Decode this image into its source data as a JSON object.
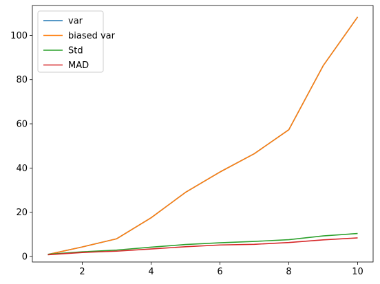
{
  "chart_data": {
    "type": "line",
    "title": "",
    "xlabel": "",
    "ylabel": "",
    "grid": false,
    "legend_position": "top-left",
    "xlim": [
      0.55,
      10.45
    ],
    "ylim": [
      -2.5,
      113.5
    ],
    "xticks": [
      2,
      4,
      6,
      8,
      10
    ],
    "yticks": [
      0,
      20,
      40,
      60,
      80,
      100
    ],
    "x": [
      1,
      2,
      3,
      4,
      5,
      6,
      7,
      8,
      9,
      10
    ],
    "series": [
      {
        "name": "var",
        "color": "#1f77b4",
        "values": [
          0.9,
          4.3,
          8.0,
          17.5,
          29.0,
          38.2,
          46.5,
          57.3,
          86.3,
          108.3
        ]
      },
      {
        "name": "biased var",
        "color": "#ff7f0e",
        "values": [
          0.9,
          4.3,
          8.0,
          17.5,
          29.0,
          38.2,
          46.5,
          57.3,
          86.3,
          108.3
        ]
      },
      {
        "name": "Std",
        "color": "#2ca02c",
        "values": [
          1.0,
          2.1,
          2.9,
          4.2,
          5.4,
          6.2,
          6.8,
          7.6,
          9.3,
          10.4
        ]
      },
      {
        "name": "MAD",
        "color": "#d62728",
        "values": [
          0.8,
          1.8,
          2.4,
          3.4,
          4.4,
          5.2,
          5.5,
          6.3,
          7.5,
          8.4
        ]
      }
    ]
  }
}
